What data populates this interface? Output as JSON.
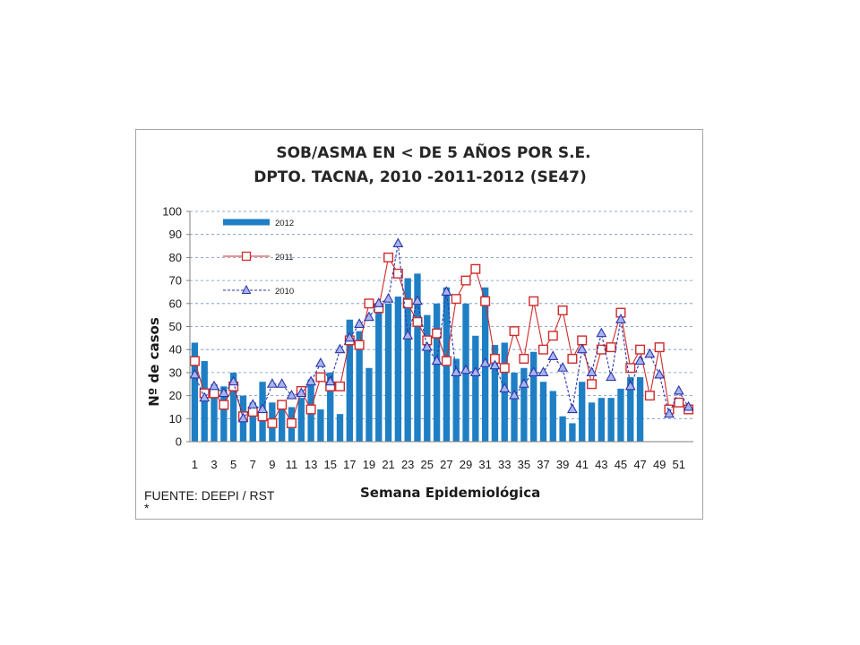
{
  "chart_data": {
    "type": "bar",
    "title_line1": "SOB/ASMA EN < DE 5 AÑOS POR S.E.",
    "title_line2": "DPTO. TACNA, 2010 -2011-2012 (SE47)",
    "xlabel": "Semana Epidemiológica",
    "ylabel": "Nº de casos",
    "source": "FUENTE: DEEPI / RST",
    "footnote": "*",
    "ylim": [
      0,
      100
    ],
    "yticks": [
      0,
      10,
      20,
      30,
      40,
      50,
      60,
      70,
      80,
      90,
      100
    ],
    "x_tick_labels": [
      "1",
      "3",
      "5",
      "7",
      "9",
      "11",
      "13",
      "15",
      "17",
      "19",
      "21",
      "23",
      "25",
      "27",
      "29",
      "31",
      "33",
      "35",
      "37",
      "39",
      "41",
      "43",
      "45",
      "47",
      "49",
      "51"
    ],
    "weeks": [
      1,
      2,
      3,
      4,
      5,
      6,
      7,
      8,
      9,
      10,
      11,
      12,
      13,
      14,
      15,
      16,
      17,
      18,
      19,
      20,
      21,
      22,
      23,
      24,
      25,
      26,
      27,
      28,
      29,
      30,
      31,
      32,
      33,
      34,
      35,
      36,
      37,
      38,
      39,
      40,
      41,
      42,
      43,
      44,
      45,
      46,
      47,
      48,
      49,
      50,
      51,
      52
    ],
    "grid": true,
    "legend_position": "top-left",
    "series": [
      {
        "name": "2012",
        "kind": "bar",
        "color": "#1f7fc4",
        "values": [
          43,
          35,
          25,
          24,
          30,
          20,
          17,
          26,
          17,
          18,
          15,
          19,
          27,
          14,
          30,
          12,
          53,
          48,
          32,
          58,
          60,
          63,
          71,
          73,
          55,
          60,
          67,
          36,
          60,
          46,
          67,
          42,
          43,
          30,
          32,
          39,
          26,
          22,
          11,
          8,
          26,
          17,
          19,
          19,
          23,
          28,
          28
        ]
      },
      {
        "name": "2011",
        "kind": "line",
        "color": "#d02b2b",
        "marker": "square",
        "values": [
          35,
          21,
          21,
          16,
          24,
          11,
          13,
          11,
          8,
          16,
          8,
          22,
          14,
          28,
          24,
          24,
          44,
          42,
          60,
          58,
          80,
          73,
          60,
          52,
          44,
          47,
          35,
          62,
          70,
          75,
          61,
          36,
          32,
          48,
          36,
          61,
          40,
          46,
          57,
          36,
          44,
          25,
          40,
          41,
          56,
          32,
          40,
          20,
          41,
          14,
          17,
          14
        ]
      },
      {
        "name": "2010",
        "kind": "line",
        "color": "#2b36a8",
        "marker": "triangle",
        "values": [
          29,
          19,
          24,
          21,
          26,
          10,
          16,
          14,
          25,
          25,
          20,
          21,
          26,
          34,
          26,
          40,
          45,
          51,
          54,
          60,
          62,
          86,
          46,
          61,
          41,
          35,
          65,
          30,
          31,
          30,
          34,
          33,
          23,
          20,
          25,
          30,
          30,
          37,
          32,
          14,
          40,
          30,
          47,
          28,
          53,
          24,
          35,
          38,
          29,
          12,
          22,
          15
        ]
      }
    ]
  }
}
